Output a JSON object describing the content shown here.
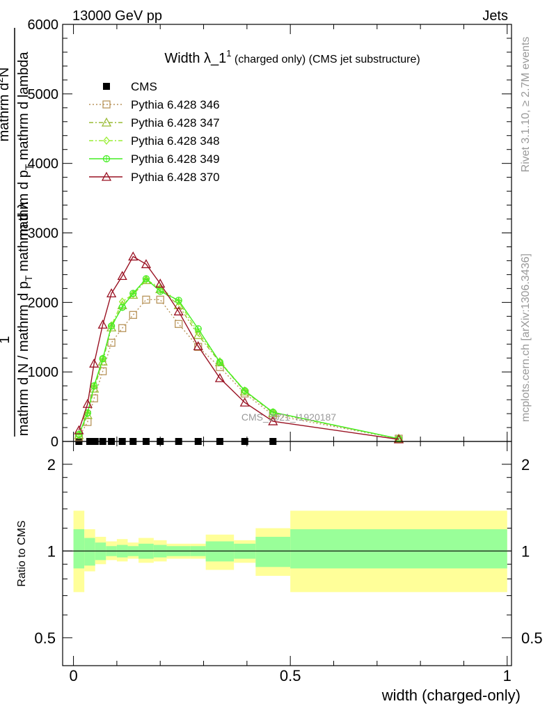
{
  "header": {
    "left": "13000 GeV pp",
    "right": "Jets"
  },
  "side_labels": {
    "rivet": "Rivet 3.1.10, ≥ 2.7M events",
    "mcplots": "mcplots.cern.ch [arXiv:1306.3436]"
  },
  "colors": {
    "axis": "#000000",
    "yellow_band": "#ffff99",
    "green_band": "#99ff99",
    "grey_text": "#999999"
  },
  "chart_data": {
    "type": "line",
    "main": {
      "title_main": "Width λ_1",
      "title_sup": "1",
      "title_rest": " (charged only) (CMS jet substructure)",
      "ylabel_num": "1",
      "ylabel_den": "mathrm d N / mathrm d p",
      "ylabel_den_sub": "T",
      "ylabel_den_rest": " mathrm d λ",
      "ylabel_top": "mathrm d",
      "ylabel_top_sup": "2",
      "ylabel_top_rest": "N",
      "ylabel_num2": "mathrm d p",
      "ylabel_num2_sub": "T",
      "ylabel_num2_rest": " mathrm d lambda",
      "ylim": [
        0,
        6000
      ],
      "xlim": [
        -0.025,
        1.01
      ],
      "ytick_labels": [
        "0",
        "1000",
        "2000",
        "3000",
        "4000",
        "5000",
        "6000"
      ],
      "watermark": "CMS_2021_I1920187",
      "legend_position": "top-left",
      "series": [
        {
          "name": "CMS",
          "style": "data",
          "color": "#000000",
          "x": [
            0.0125,
            0.0375,
            0.05,
            0.0675,
            0.0875,
            0.1125,
            0.1375,
            0.1675,
            0.2,
            0.2425,
            0.2875,
            0.3375,
            0.395,
            0.46
          ],
          "y": [
            0,
            0,
            0,
            0,
            0,
            0,
            0,
            0,
            0,
            0,
            0,
            0,
            0,
            0
          ]
        },
        {
          "name": "Pythia 6.428 346",
          "style": "dotted",
          "marker": "square",
          "color": "#b8945a",
          "x": [
            0.0125,
            0.0325,
            0.0475,
            0.0675,
            0.0875,
            0.1125,
            0.1375,
            0.1675,
            0.2,
            0.2425,
            0.2875,
            0.3375,
            0.395,
            0.46,
            0.75
          ],
          "y": [
            60,
            280,
            620,
            1010,
            1420,
            1630,
            1820,
            2040,
            2040,
            1690,
            1360,
            1070,
            690,
            380,
            40
          ]
        },
        {
          "name": "Pythia 6.428 347",
          "style": "dashdot",
          "marker": "triangle",
          "color": "#99bb33",
          "x": [
            0.0125,
            0.0325,
            0.0475,
            0.0675,
            0.0875,
            0.1125,
            0.1375,
            0.1675,
            0.2,
            0.2425,
            0.2875,
            0.3375,
            0.395,
            0.46,
            0.75
          ],
          "y": [
            90,
            380,
            760,
            1150,
            1640,
            1960,
            2110,
            2320,
            2190,
            1960,
            1530,
            1140,
            720,
            410,
            40
          ]
        },
        {
          "name": "Pythia 6.428 348",
          "style": "dashdot",
          "marker": "diamond",
          "color": "#99ee33",
          "x": [
            0.0125,
            0.0325,
            0.0475,
            0.0675,
            0.0875,
            0.1125,
            0.1375,
            0.1675,
            0.2,
            0.2425,
            0.2875,
            0.3375,
            0.395,
            0.46,
            0.75
          ],
          "y": [
            100,
            400,
            790,
            1190,
            1670,
            2010,
            2120,
            2330,
            2210,
            2010,
            1570,
            1150,
            730,
            420,
            40
          ]
        },
        {
          "name": "Pythia 6.428 349",
          "style": "solid",
          "marker": "circle",
          "color": "#44ee22",
          "x": [
            0.0125,
            0.0325,
            0.0475,
            0.0675,
            0.0875,
            0.1125,
            0.1375,
            0.1675,
            0.2,
            0.2425,
            0.2875,
            0.3375,
            0.395,
            0.46,
            0.75
          ],
          "y": [
            100,
            410,
            800,
            1190,
            1660,
            1930,
            2130,
            2340,
            2160,
            2030,
            1620,
            1140,
            730,
            420,
            40
          ]
        },
        {
          "name": "Pythia 6.428 370",
          "style": "solid",
          "marker": "triangle",
          "color": "#991122",
          "x": [
            0.0125,
            0.0325,
            0.0475,
            0.0675,
            0.0875,
            0.1125,
            0.1375,
            0.1675,
            0.2,
            0.2425,
            0.2875,
            0.3375,
            0.395,
            0.46,
            0.75
          ],
          "y": [
            160,
            540,
            1120,
            1680,
            2130,
            2380,
            2660,
            2550,
            2270,
            1870,
            1370,
            910,
            560,
            290,
            30
          ]
        }
      ]
    },
    "ratio": {
      "ylabel": "Ratio to CMS",
      "ytick_labels": [
        "0.5",
        "1",
        "2"
      ],
      "ytick_values": [
        0.5,
        1,
        2
      ],
      "log_scale": true,
      "ylim": [
        0.4,
        2.4
      ],
      "xtick_labels": [
        "0",
        "0.5",
        "1"
      ],
      "xtick_values": [
        0,
        0.5,
        1
      ],
      "xlabel": "width (charged-only)",
      "bins": [
        {
          "x0": 0.0,
          "x1": 0.025,
          "ylo": 0.72,
          "yhi": 1.38,
          "glo": 0.87,
          "ghi": 1.19
        },
        {
          "x0": 0.025,
          "x1": 0.05,
          "ylo": 0.85,
          "yhi": 1.19,
          "glo": 0.89,
          "ghi": 1.11
        },
        {
          "x0": 0.05,
          "x1": 0.075,
          "ylo": 0.9,
          "yhi": 1.12,
          "glo": 0.93,
          "ghi": 1.07
        },
        {
          "x0": 0.075,
          "x1": 0.1,
          "ylo": 0.93,
          "yhi": 1.08,
          "glo": 0.96,
          "ghi": 1.04
        },
        {
          "x0": 0.1,
          "x1": 0.125,
          "ylo": 0.92,
          "yhi": 1.1,
          "glo": 0.95,
          "ghi": 1.05
        },
        {
          "x0": 0.125,
          "x1": 0.15,
          "ylo": 0.94,
          "yhi": 1.07,
          "glo": 0.96,
          "ghi": 1.04
        },
        {
          "x0": 0.15,
          "x1": 0.185,
          "ylo": 0.91,
          "yhi": 1.11,
          "glo": 0.94,
          "ghi": 1.06
        },
        {
          "x0": 0.185,
          "x1": 0.215,
          "ylo": 0.92,
          "yhi": 1.09,
          "glo": 0.95,
          "ghi": 1.05
        },
        {
          "x0": 0.215,
          "x1": 0.27,
          "ylo": 0.94,
          "yhi": 1.06,
          "glo": 0.96,
          "ghi": 1.04
        },
        {
          "x0": 0.27,
          "x1": 0.305,
          "ylo": 0.94,
          "yhi": 1.06,
          "glo": 0.96,
          "ghi": 1.04
        },
        {
          "x0": 0.305,
          "x1": 0.37,
          "ylo": 0.86,
          "yhi": 1.14,
          "glo": 0.92,
          "ghi": 1.08
        },
        {
          "x0": 0.37,
          "x1": 0.42,
          "ylo": 0.91,
          "yhi": 1.09,
          "glo": 0.94,
          "ghi": 1.06
        },
        {
          "x0": 0.42,
          "x1": 0.5,
          "ylo": 0.82,
          "yhi": 1.2,
          "glo": 0.88,
          "ghi": 1.12
        },
        {
          "x0": 0.5,
          "x1": 1.0,
          "ylo": 0.72,
          "yhi": 1.38,
          "glo": 0.87,
          "ghi": 1.19
        }
      ]
    }
  }
}
